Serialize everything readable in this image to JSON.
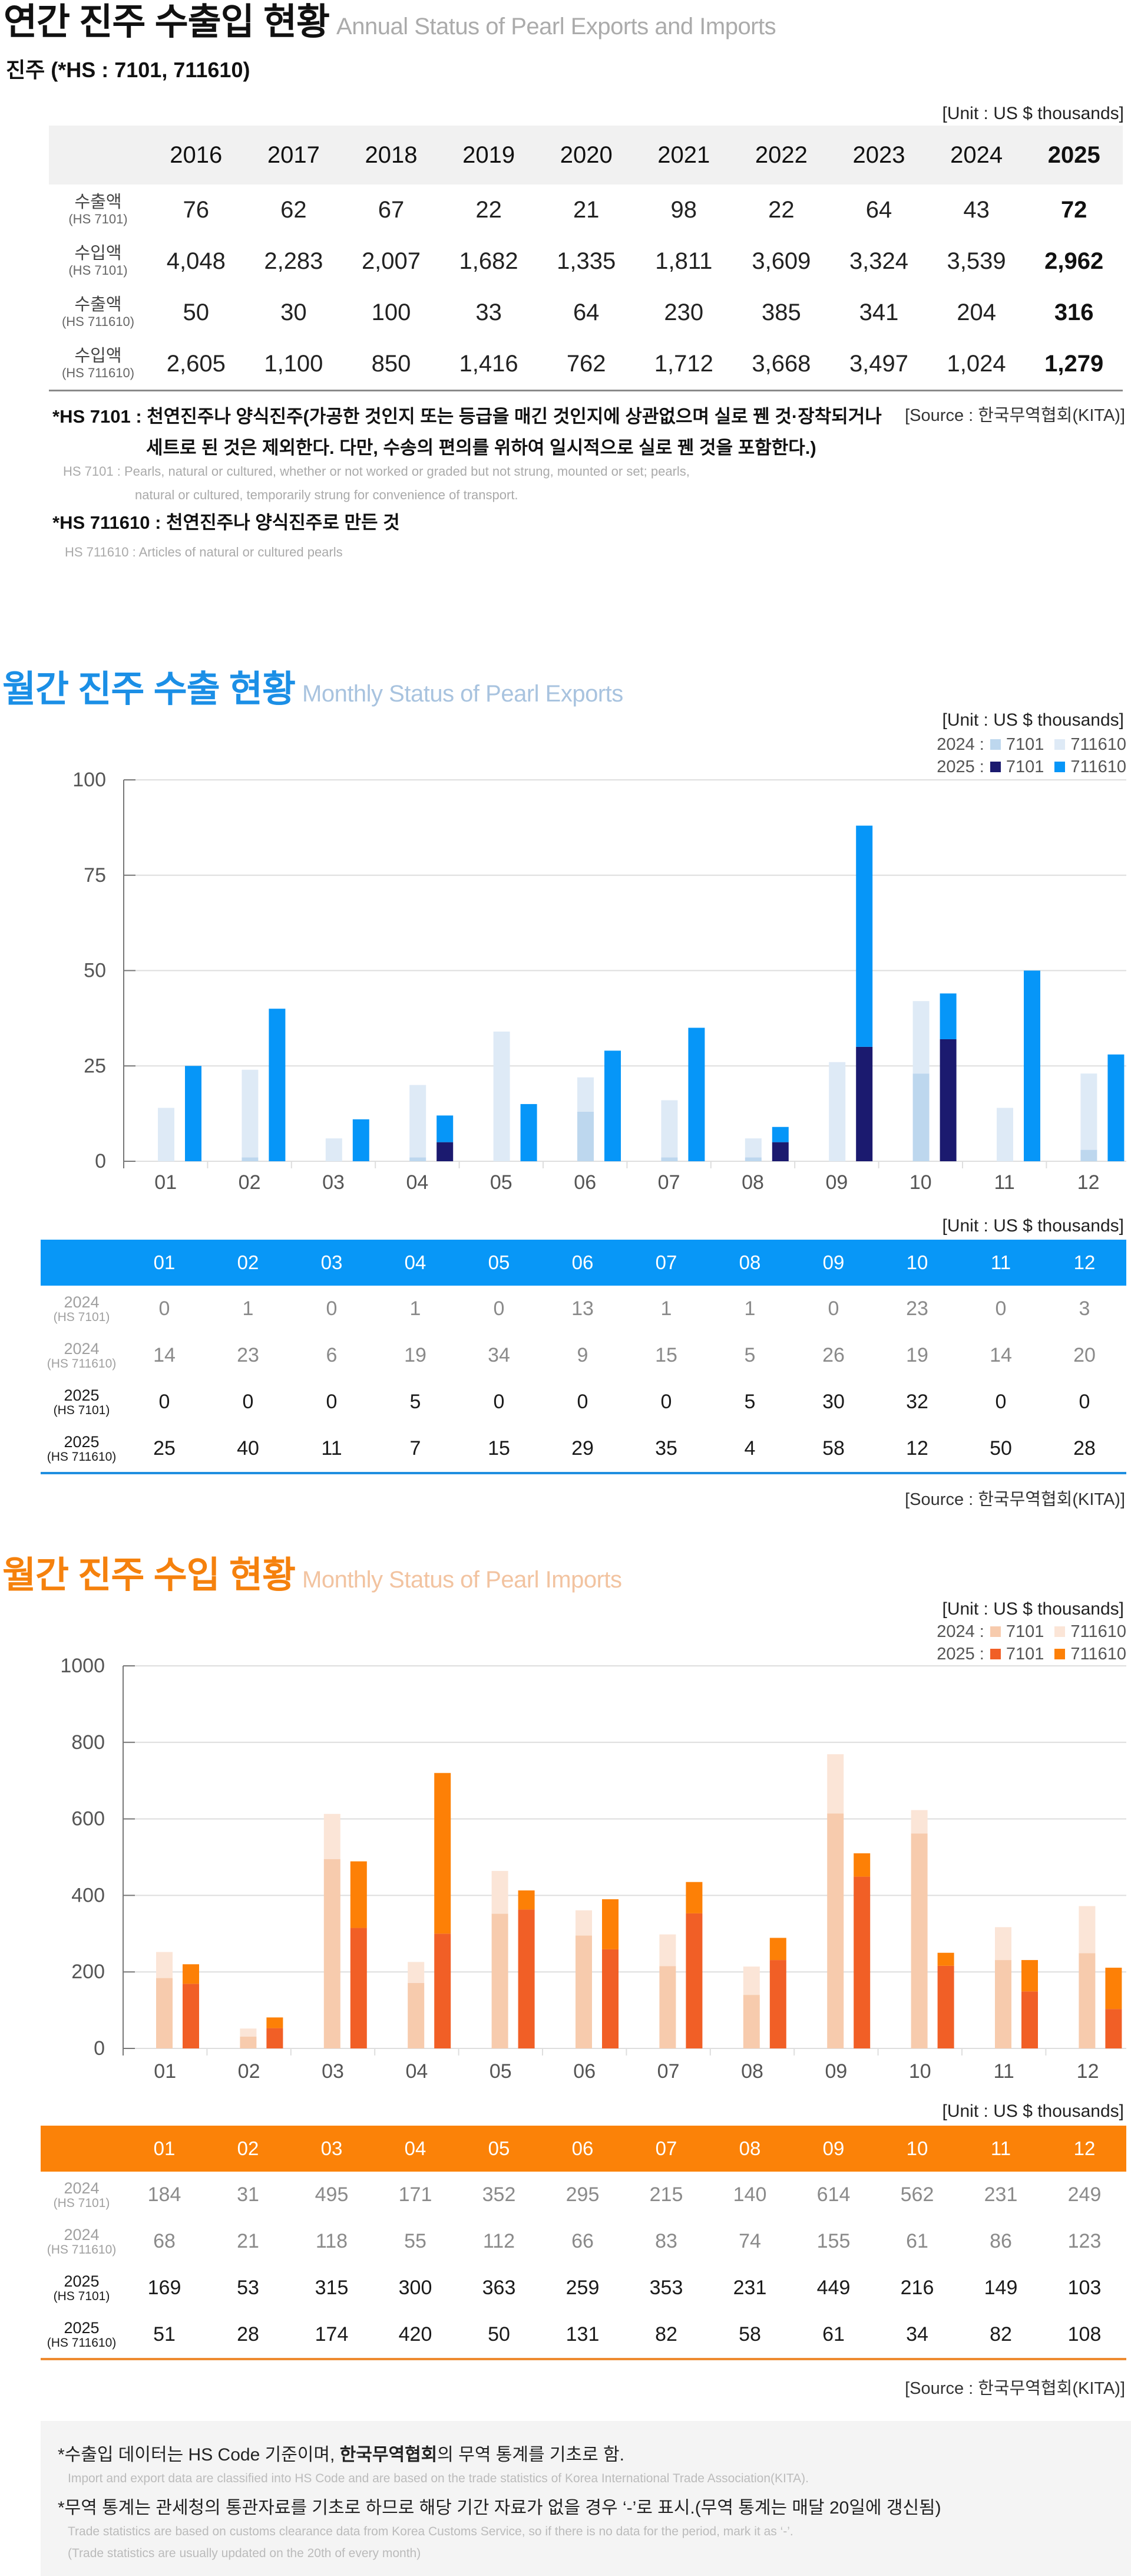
{
  "annual": {
    "title": "연간 진주 수출입 현황",
    "title_en": "Annual Status of Pearl Exports and Imports",
    "subtitle": "진주 (*HS : 7101, 711610)",
    "unit": "[Unit : US $ thousands]",
    "table": {
      "years": [
        "2016",
        "2017",
        "2018",
        "2019",
        "2020",
        "2021",
        "2022",
        "2023",
        "2024",
        "2025"
      ],
      "rows": [
        {
          "label": "수출액",
          "code": "(HS 7101)",
          "values": [
            "76",
            "62",
            "67",
            "22",
            "21",
            "98",
            "22",
            "64",
            "43",
            "72"
          ]
        },
        {
          "label": "수입액",
          "code": "(HS 7101)",
          "values": [
            "4,048",
            "2,283",
            "2,007",
            "1,682",
            "1,335",
            "1,811",
            "3,609",
            "3,324",
            "3,539",
            "2,962"
          ]
        },
        {
          "label": "수출액",
          "code": "(HS 711610)",
          "values": [
            "50",
            "30",
            "100",
            "33",
            "64",
            "230",
            "385",
            "341",
            "204",
            "316"
          ]
        },
        {
          "label": "수입액",
          "code": "(HS 711610)",
          "values": [
            "2,605",
            "1,100",
            "850",
            "1,416",
            "762",
            "1,712",
            "3,668",
            "3,497",
            "1,024",
            "1,279"
          ]
        }
      ]
    },
    "notes": {
      "hs7101_ko": [
        "*HS 7101 : 천연진주나 양식진주(가공한 것인지 또는 등급을 매긴 것인지에 상관없으며 실로 꿴 것·장착되거나",
        "세트로 된 것은 제외한다. 다만, 수송의 편의를 위하여 일시적으로 실로 꿴 것을 포함한다.)"
      ],
      "hs7101_en": [
        "HS 7101 : Pearls, natural or cultured, whether or not worked or graded but not strung, mounted or set; pearls,",
        "natural or cultured, temporarily strung for convenience of transport."
      ],
      "hs711610_ko": "*HS 711610 : 천연진주나 양식진주로 만든 것",
      "hs711610_en": "HS 711610 : Articles of natural or cultured pearls"
    },
    "source": "[Source : 한국무역협회(KITA)]"
  },
  "exports": {
    "title": "월간 진주 수출 현황",
    "title_en": "Monthly Status of Pearl Exports",
    "chart_unit": "[Unit : US $ thousands]",
    "table_unit": "[Unit : US $ thousands]",
    "source": "[Source : 한국무역협회(KITA)]",
    "theme": {
      "title": "#1b8fe6",
      "title_en": "#a8c3df",
      "accent": "#0897f7",
      "rule": "#1f8fe0"
    }
  },
  "imports": {
    "title": "월간 진주 수입 현황",
    "title_en": "Monthly Status of Pearl Imports",
    "chart_unit": "[Unit : US $ thousands]",
    "table_unit": "[Unit : US $ thousands]",
    "source": "[Source : 한국무역협회(KITA)]",
    "theme": {
      "title": "#f5810d",
      "title_en": "#f2c3a0",
      "accent": "#fb8208",
      "rule": "#ee8b2f"
    }
  },
  "footer": {
    "note1_pre": "*수출입 데이터는 HS Code 기준이며, ",
    "note1_bold": "한국무역협회",
    "note1_post": "의 무역 통계를 기초로 함.",
    "note1_en": "Import and export data are classified into HS Code and are based on the trade statistics of Korea International  Trade Association(KITA).",
    "note2": "*무역 통계는 관세청의  통관자료를 기초로 하므로 해당 기간 자료가 없을 경우 ‘-’로 표시.(무역 통계는 매달 20일에 갱신됨)",
    "note2_en": "Trade statistics are based on customs clearance data from Korea Customs Service, so if there is no data for the period, mark it as ‘-’.",
    "note2_en_2": "(Trade statistics are usually updated on the 20th of every month)"
  },
  "chart_data": [
    {
      "id": "exports",
      "type": "bar",
      "stacked": true,
      "grouped_by": "year",
      "title": "월간 진주 수출 현황",
      "subtitle": "Monthly Status of Pearl Exports",
      "unit": "US $ thousands",
      "xlabel": "",
      "ylabel": "",
      "categories": [
        "01",
        "02",
        "03",
        "04",
        "05",
        "06",
        "07",
        "08",
        "09",
        "10",
        "11",
        "12"
      ],
      "ylim": [
        0,
        100
      ],
      "yticks": [
        0,
        25,
        50,
        75,
        100
      ],
      "grid": true,
      "legend_position": "top-right",
      "legend": [
        {
          "group": "2024 :",
          "items": [
            {
              "label": "7101",
              "series": 0
            },
            {
              "label": "711610",
              "series": 1
            }
          ]
        },
        {
          "group": "2025 :",
          "items": [
            {
              "label": "7101",
              "series": 2
            },
            {
              "label": "711610",
              "series": 3
            }
          ]
        }
      ],
      "series": [
        {
          "name": "2024 (HS 7101)",
          "group": "2024",
          "hs_label": "(HS 7101)",
          "hs_code": "7101",
          "color": "#bdd7ee",
          "values": [
            0,
            1,
            0,
            1,
            0,
            13,
            1,
            1,
            0,
            23,
            0,
            3
          ]
        },
        {
          "name": "2024 (HS 711610)",
          "group": "2024",
          "hs_label": "(HS 711610)",
          "hs_code": "711610",
          "color": "#deeaf6",
          "values": [
            14,
            23,
            6,
            19,
            34,
            9,
            15,
            5,
            26,
            19,
            14,
            20
          ]
        },
        {
          "name": "2025 (HS 7101)",
          "group": "2025",
          "hs_label": "(HS 7101)",
          "hs_code": "7101",
          "color": "#1b1a6f",
          "values": [
            0,
            0,
            0,
            5,
            0,
            0,
            0,
            5,
            30,
            32,
            0,
            0
          ]
        },
        {
          "name": "2025 (HS 711610)",
          "group": "2025",
          "hs_label": "(HS 711610)",
          "hs_code": "711610",
          "color": "#0696f8",
          "values": [
            25,
            40,
            11,
            7,
            15,
            29,
            35,
            4,
            58,
            12,
            50,
            28
          ]
        }
      ]
    },
    {
      "id": "imports",
      "type": "bar",
      "stacked": true,
      "grouped_by": "year",
      "title": "월간 진주 수입 현황",
      "subtitle": "Monthly Status of Pearl Imports",
      "unit": "US $ thousands",
      "xlabel": "",
      "ylabel": "",
      "categories": [
        "01",
        "02",
        "03",
        "04",
        "05",
        "06",
        "07",
        "08",
        "09",
        "10",
        "11",
        "12"
      ],
      "ylim": [
        0,
        1000
      ],
      "yticks": [
        0,
        200,
        400,
        600,
        800,
        1000
      ],
      "grid": true,
      "legend_position": "top-right",
      "legend": [
        {
          "group": "2024 :",
          "items": [
            {
              "label": "7101",
              "series": 0
            },
            {
              "label": "711610",
              "series": 1
            }
          ]
        },
        {
          "group": "2025 :",
          "items": [
            {
              "label": "7101",
              "series": 2
            },
            {
              "label": "711610",
              "series": 3
            }
          ]
        }
      ],
      "series": [
        {
          "name": "2024 (HS 7101)",
          "group": "2024",
          "hs_label": "(HS 7101)",
          "hs_code": "7101",
          "color": "#f7cbad",
          "values": [
            184,
            31,
            495,
            171,
            352,
            295,
            215,
            140,
            614,
            562,
            231,
            249
          ]
        },
        {
          "name": "2024 (HS 711610)",
          "group": "2024",
          "hs_label": "(HS 711610)",
          "hs_code": "711610",
          "color": "#fbe5d7",
          "values": [
            68,
            21,
            118,
            55,
            112,
            66,
            83,
            74,
            155,
            61,
            86,
            123
          ]
        },
        {
          "name": "2025 (HS 7101)",
          "group": "2025",
          "hs_label": "(HS 7101)",
          "hs_code": "7101",
          "color": "#f15f26",
          "values": [
            169,
            53,
            315,
            300,
            363,
            259,
            353,
            231,
            449,
            216,
            149,
            103
          ]
        },
        {
          "name": "2025 (HS 711610)",
          "group": "2025",
          "hs_label": "(HS 711610)",
          "hs_code": "711610",
          "color": "#fd8006",
          "values": [
            51,
            28,
            174,
            420,
            50,
            131,
            82,
            58,
            61,
            34,
            82,
            108
          ]
        }
      ]
    }
  ]
}
